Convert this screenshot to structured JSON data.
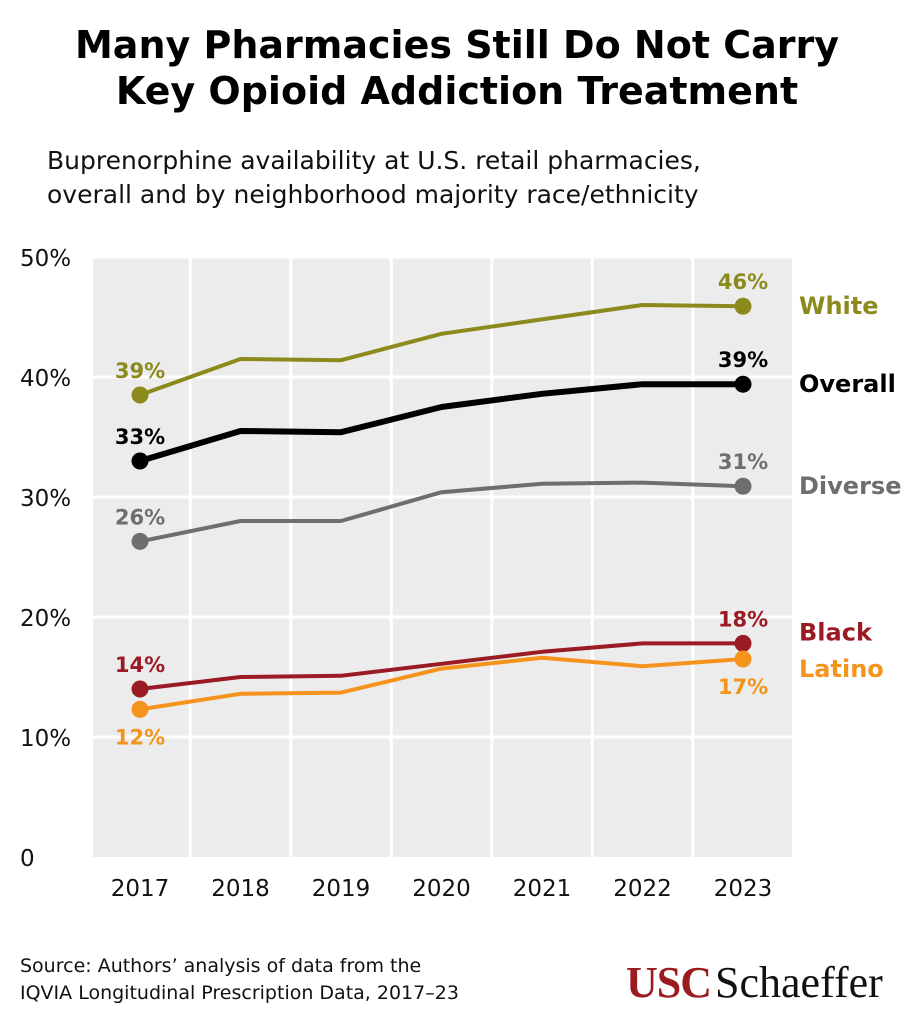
{
  "header": {
    "title_line1": "Many Pharmacies Still Do Not Carry",
    "title_line2": "Key Opioid Addiction Treatment",
    "subtitle_line1": "Buprenorphine availability at U.S. retail pharmacies,",
    "subtitle_line2": "overall and by neighborhood majority race/ethnicity"
  },
  "chart_data": {
    "type": "line",
    "title": "Many Pharmacies Still Do Not Carry Key Opioid Addiction Treatment",
    "subtitle": "Buprenorphine availability at U.S. retail pharmacies, overall and by neighborhood majority race/ethnicity",
    "xlabel": "",
    "ylabel": "",
    "categories": [
      "2017",
      "2018",
      "2019",
      "2020",
      "2021",
      "2022",
      "2023"
    ],
    "ylim": [
      0,
      50
    ],
    "yticks": [
      0,
      10,
      20,
      30,
      40,
      50
    ],
    "ytick_labels": [
      "0",
      "10%",
      "20%",
      "30%",
      "40%",
      "50%"
    ],
    "grid": true,
    "legend_placement": "right (direct labels)",
    "series": [
      {
        "name": "White",
        "color": "#8c8a1c",
        "values": [
          38.5,
          41.5,
          41.4,
          43.6,
          44.8,
          46.0,
          45.9
        ],
        "start_label": "39%",
        "end_label": "46%"
      },
      {
        "name": "Overall",
        "color": "#000000",
        "values": [
          33.0,
          35.5,
          35.4,
          37.5,
          38.6,
          39.4,
          39.4
        ],
        "start_label": "33%",
        "end_label": "39%"
      },
      {
        "name": "Diverse",
        "color": "#6e6e6e",
        "values": [
          26.3,
          28.0,
          28.0,
          30.4,
          31.1,
          31.2,
          30.9
        ],
        "start_label": "26%",
        "end_label": "31%"
      },
      {
        "name": "Black",
        "color": "#9b1b24",
        "values": [
          14.0,
          15.0,
          15.1,
          16.1,
          17.1,
          17.8,
          17.8
        ],
        "start_label": "14%",
        "end_label": "18%"
      },
      {
        "name": "Latino",
        "color": "#f5941d",
        "values": [
          12.3,
          13.6,
          13.7,
          15.7,
          16.6,
          15.9,
          16.5
        ],
        "start_label": "12%",
        "end_label": "17%"
      }
    ]
  },
  "footer": {
    "source_line1": "Source: Authors’ analysis of data from the",
    "source_line2": "IQVIA Longitudinal Prescription Data, 2017–23",
    "logo_usc": "USC",
    "logo_schaeffer": "Schaeffer"
  }
}
